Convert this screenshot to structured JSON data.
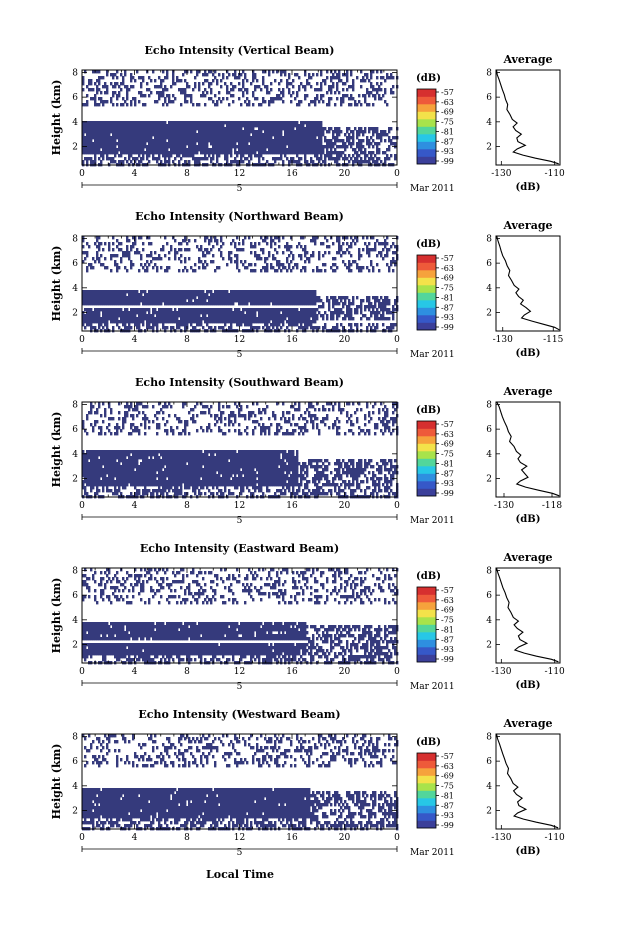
{
  "figure": {
    "xlabel": "Local Time",
    "date_label": "Mar 2011"
  },
  "chart_data": [
    {
      "type": "heatmap",
      "title": "Echo Intensity (Vertical Beam)",
      "xlabel": "",
      "ylabel": "Height (km)",
      "x_ticks": [
        "0",
        "4",
        "8",
        "12",
        "16",
        "20",
        "0"
      ],
      "day_label": "5",
      "y_ticks": [
        "2",
        "4",
        "6",
        "8"
      ],
      "xlim": [
        0,
        24
      ],
      "ylim": [
        0.5,
        8.2
      ],
      "colorbar": {
        "label": "(dB)",
        "ticks": [
          "-57",
          "-63",
          "-69",
          "-75",
          "-81",
          "-87",
          "-93",
          "-99"
        ],
        "colors": [
          "#3b3f9a",
          "#3658c8",
          "#2e8fe0",
          "#27c7e6",
          "#52d69b",
          "#a8e34b",
          "#f3e24a",
          "#f6a23c",
          "#ee5a3a",
          "#d62f2f"
        ]
      },
      "fill_color": "#353a7c",
      "layers": [
        {
          "y_range": [
            3.0,
            4.0
          ],
          "x_range": [
            0,
            18.3
          ],
          "coverage": "solid"
        },
        {
          "y_range": [
            1.5,
            3.0
          ],
          "x_range": [
            0,
            18.3
          ],
          "coverage": "solid"
        },
        {
          "y_range": [
            1.0,
            3.6
          ],
          "x_range": [
            18.3,
            24
          ],
          "coverage": "patchy"
        },
        {
          "y_range": [
            0.5,
            1.4
          ],
          "x_range": [
            0,
            24
          ],
          "coverage": "partial"
        },
        {
          "y_range": [
            5.2,
            8.2
          ],
          "x_range": [
            0,
            24
          ],
          "coverage": "scattered"
        }
      ],
      "profile": {
        "title": "Average",
        "xlabel": "(dB)",
        "x_ticks": [
          "-130",
          "-110"
        ],
        "xlim": [
          -132,
          -108
        ],
        "y_ticks": [
          "2",
          "4",
          "6",
          "8"
        ],
        "ylim": [
          0.5,
          8.2
        ],
        "points": [
          [
            -131.8,
            8.2
          ],
          [
            -131.5,
            7.8
          ],
          [
            -130.8,
            7.4
          ],
          [
            -130.2,
            7.0
          ],
          [
            -129.6,
            6.6
          ],
          [
            -128.9,
            6.2
          ],
          [
            -128.4,
            5.8
          ],
          [
            -127.6,
            5.4
          ],
          [
            -127.9,
            5.0
          ],
          [
            -126.8,
            4.6
          ],
          [
            -125.9,
            4.2
          ],
          [
            -124.1,
            3.9
          ],
          [
            -125.6,
            3.6
          ],
          [
            -124.6,
            3.3
          ],
          [
            -122.5,
            3.0
          ],
          [
            -124.2,
            2.7
          ],
          [
            -123.8,
            2.4
          ],
          [
            -121.0,
            2.1
          ],
          [
            -124.1,
            1.8
          ],
          [
            -125.5,
            1.55
          ],
          [
            -121.9,
            1.3
          ],
          [
            -117.2,
            1.05
          ],
          [
            -111.5,
            0.8
          ],
          [
            -108.5,
            0.6
          ]
        ]
      }
    },
    {
      "type": "heatmap",
      "title": "Echo Intensity (Northward Beam)",
      "xlabel": "",
      "ylabel": "Height (km)",
      "x_ticks": [
        "0",
        "4",
        "8",
        "12",
        "16",
        "20",
        "0"
      ],
      "day_label": "5",
      "y_ticks": [
        "2",
        "4",
        "6",
        "8"
      ],
      "xlim": [
        0,
        24
      ],
      "ylim": [
        0.5,
        8.2
      ],
      "colorbar": {
        "label": "(dB)",
        "ticks": [
          "-57",
          "-63",
          "-69",
          "-75",
          "-81",
          "-87",
          "-93",
          "-99"
        ],
        "colors": [
          "#3b3f9a",
          "#3658c8",
          "#2e8fe0",
          "#27c7e6",
          "#52d69b",
          "#a8e34b",
          "#f3e24a",
          "#f6a23c",
          "#ee5a3a",
          "#d62f2f"
        ]
      },
      "fill_color": "#353a7c",
      "layers": [
        {
          "y_range": [
            2.5,
            3.9
          ],
          "x_range": [
            0,
            17.8
          ],
          "coverage": "solid"
        },
        {
          "y_range": [
            1.2,
            2.3
          ],
          "x_range": [
            0,
            17.8
          ],
          "coverage": "solid"
        },
        {
          "y_range": [
            1.4,
            3.4
          ],
          "x_range": [
            17.8,
            24
          ],
          "coverage": "patchy"
        },
        {
          "y_range": [
            0.5,
            1.2
          ],
          "x_range": [
            0,
            24
          ],
          "coverage": "partial"
        },
        {
          "y_range": [
            5.4,
            8.2
          ],
          "x_range": [
            0,
            24
          ],
          "coverage": "scattered"
        }
      ],
      "profile": {
        "title": "Average",
        "xlabel": "(dB)",
        "x_ticks": [
          "-130",
          "-115"
        ],
        "xlim": [
          -132,
          -113
        ],
        "y_ticks": [
          "2",
          "4",
          "6",
          "8"
        ],
        "ylim": [
          0.5,
          8.2
        ],
        "points": [
          [
            -131.8,
            8.2
          ],
          [
            -131.4,
            7.8
          ],
          [
            -130.9,
            7.4
          ],
          [
            -130.5,
            7.0
          ],
          [
            -130.0,
            6.6
          ],
          [
            -129.2,
            6.2
          ],
          [
            -128.7,
            5.8
          ],
          [
            -127.9,
            5.4
          ],
          [
            -128.3,
            5.0
          ],
          [
            -127.4,
            4.6
          ],
          [
            -126.6,
            4.2
          ],
          [
            -125.2,
            3.9
          ],
          [
            -126.1,
            3.6
          ],
          [
            -125.3,
            3.3
          ],
          [
            -123.9,
            3.0
          ],
          [
            -124.7,
            2.7
          ],
          [
            -123.1,
            2.4
          ],
          [
            -121.8,
            2.1
          ],
          [
            -123.6,
            1.8
          ],
          [
            -124.4,
            1.55
          ],
          [
            -121.3,
            1.3
          ],
          [
            -118.0,
            1.05
          ],
          [
            -114.6,
            0.8
          ],
          [
            -113.2,
            0.6
          ]
        ]
      }
    },
    {
      "type": "heatmap",
      "title": "Echo Intensity (Southward Beam)",
      "xlabel": "",
      "ylabel": "Height (km)",
      "x_ticks": [
        "0",
        "4",
        "8",
        "12",
        "16",
        "20",
        "0"
      ],
      "day_label": "5",
      "y_ticks": [
        "2",
        "4",
        "6",
        "8"
      ],
      "xlim": [
        0,
        24
      ],
      "ylim": [
        0.5,
        8.2
      ],
      "colorbar": {
        "label": "(dB)",
        "ticks": [
          "-57",
          "-63",
          "-69",
          "-75",
          "-81",
          "-87",
          "-93",
          "-99"
        ],
        "colors": [
          "#3b3f9a",
          "#3658c8",
          "#2e8fe0",
          "#27c7e6",
          "#52d69b",
          "#a8e34b",
          "#f3e24a",
          "#f6a23c",
          "#ee5a3a",
          "#d62f2f"
        ]
      },
      "fill_color": "#353a7c",
      "layers": [
        {
          "y_range": [
            1.5,
            4.2
          ],
          "x_range": [
            0,
            16.5
          ],
          "coverage": "solid"
        },
        {
          "y_range": [
            0.5,
            1.5
          ],
          "x_range": [
            0,
            24
          ],
          "coverage": "partial"
        },
        {
          "y_range": [
            1.5,
            3.6
          ],
          "x_range": [
            16.5,
            24
          ],
          "coverage": "patchy"
        },
        {
          "y_range": [
            5.6,
            8.2
          ],
          "x_range": [
            0,
            24
          ],
          "coverage": "scattered"
        }
      ],
      "profile": {
        "title": "Average",
        "xlabel": "(dB)",
        "x_ticks": [
          "-130",
          "-118"
        ],
        "xlim": [
          -132,
          -116
        ],
        "y_ticks": [
          "2",
          "4",
          "6",
          "8"
        ],
        "ylim": [
          0.5,
          8.2
        ],
        "points": [
          [
            -131.8,
            8.2
          ],
          [
            -131.2,
            7.8
          ],
          [
            -130.8,
            7.4
          ],
          [
            -130.4,
            7.0
          ],
          [
            -129.9,
            6.6
          ],
          [
            -129.3,
            6.2
          ],
          [
            -128.9,
            5.8
          ],
          [
            -128.2,
            5.4
          ],
          [
            -128.6,
            5.0
          ],
          [
            -127.5,
            4.6
          ],
          [
            -126.9,
            4.2
          ],
          [
            -125.8,
            3.9
          ],
          [
            -126.5,
            3.6
          ],
          [
            -125.9,
            3.3
          ],
          [
            -124.3,
            3.0
          ],
          [
            -125.6,
            2.7
          ],
          [
            -124.8,
            2.4
          ],
          [
            -124.0,
            2.1
          ],
          [
            -125.9,
            1.8
          ],
          [
            -126.8,
            1.55
          ],
          [
            -124.6,
            1.3
          ],
          [
            -121.4,
            1.05
          ],
          [
            -117.9,
            0.8
          ],
          [
            -116.2,
            0.6
          ]
        ]
      }
    },
    {
      "type": "heatmap",
      "title": "Echo Intensity (Eastward Beam)",
      "xlabel": "",
      "ylabel": "Height (km)",
      "x_ticks": [
        "0",
        "4",
        "8",
        "12",
        "16",
        "20",
        "0"
      ],
      "day_label": "5",
      "y_ticks": [
        "2",
        "4",
        "6",
        "8"
      ],
      "xlim": [
        0,
        24
      ],
      "ylim": [
        0.5,
        8.2
      ],
      "colorbar": {
        "label": "(dB)",
        "ticks": [
          "-57",
          "-63",
          "-69",
          "-75",
          "-81",
          "-87",
          "-93",
          "-99"
        ],
        "colors": [
          "#3b3f9a",
          "#3658c8",
          "#2e8fe0",
          "#27c7e6",
          "#52d69b",
          "#a8e34b",
          "#f3e24a",
          "#f6a23c",
          "#ee5a3a",
          "#d62f2f"
        ]
      },
      "fill_color": "#353a7c",
      "layers": [
        {
          "y_range": [
            2.4,
            3.8
          ],
          "x_range": [
            0,
            17.0
          ],
          "coverage": "solid"
        },
        {
          "y_range": [
            1.2,
            2.2
          ],
          "x_range": [
            0,
            17.0
          ],
          "coverage": "solid"
        },
        {
          "y_range": [
            1.4,
            3.5
          ],
          "x_range": [
            17.0,
            24
          ],
          "coverage": "patchy"
        },
        {
          "y_range": [
            0.5,
            1.3
          ],
          "x_range": [
            0,
            24
          ],
          "coverage": "partial"
        },
        {
          "y_range": [
            5.2,
            8.2
          ],
          "x_range": [
            0,
            24
          ],
          "coverage": "scattered"
        }
      ],
      "profile": {
        "title": "Average",
        "xlabel": "(dB)",
        "x_ticks": [
          "-130",
          "-110"
        ],
        "xlim": [
          -132,
          -108
        ],
        "y_ticks": [
          "2",
          "4",
          "6",
          "8"
        ],
        "ylim": [
          0.5,
          8.2
        ],
        "points": [
          [
            -131.8,
            8.2
          ],
          [
            -131.3,
            7.8
          ],
          [
            -130.6,
            7.4
          ],
          [
            -130.0,
            7.0
          ],
          [
            -129.4,
            6.6
          ],
          [
            -128.6,
            6.2
          ],
          [
            -128.0,
            5.8
          ],
          [
            -127.1,
            5.4
          ],
          [
            -127.5,
            5.0
          ],
          [
            -126.4,
            4.6
          ],
          [
            -125.5,
            4.2
          ],
          [
            -123.6,
            3.9
          ],
          [
            -125.2,
            3.6
          ],
          [
            -124.0,
            3.3
          ],
          [
            -121.9,
            3.0
          ],
          [
            -123.6,
            2.7
          ],
          [
            -123.0,
            2.4
          ],
          [
            -120.4,
            2.1
          ],
          [
            -123.5,
            1.8
          ],
          [
            -124.9,
            1.55
          ],
          [
            -121.4,
            1.3
          ],
          [
            -116.8,
            1.05
          ],
          [
            -111.2,
            0.8
          ],
          [
            -108.6,
            0.6
          ]
        ]
      }
    },
    {
      "type": "heatmap",
      "title": "Echo Intensity (Westward Beam)",
      "xlabel": "Local Time",
      "ylabel": "Height (km)",
      "x_ticks": [
        "0",
        "4",
        "8",
        "12",
        "16",
        "20",
        "0"
      ],
      "day_label": "5",
      "y_ticks": [
        "2",
        "4",
        "6",
        "8"
      ],
      "xlim": [
        0,
        24
      ],
      "ylim": [
        0.5,
        8.2
      ],
      "colorbar": {
        "label": "(dB)",
        "ticks": [
          "-57",
          "-63",
          "-69",
          "-75",
          "-81",
          "-87",
          "-93",
          "-99"
        ],
        "colors": [
          "#3b3f9a",
          "#3658c8",
          "#2e8fe0",
          "#27c7e6",
          "#52d69b",
          "#a8e34b",
          "#f3e24a",
          "#f6a23c",
          "#ee5a3a",
          "#d62f2f"
        ]
      },
      "fill_color": "#353a7c",
      "layers": [
        {
          "y_range": [
            2.7,
            3.9
          ],
          "x_range": [
            0,
            17.3
          ],
          "coverage": "solid"
        },
        {
          "y_range": [
            1.4,
            2.5
          ],
          "x_range": [
            0,
            17.3
          ],
          "coverage": "solid"
        },
        {
          "y_range": [
            1.3,
            3.5
          ],
          "x_range": [
            17.3,
            24
          ],
          "coverage": "patchy"
        },
        {
          "y_range": [
            0.5,
            1.3
          ],
          "x_range": [
            0,
            24
          ],
          "coverage": "partial"
        },
        {
          "y_range": [
            5.6,
            8.2
          ],
          "x_range": [
            0,
            24
          ],
          "coverage": "scattered"
        }
      ],
      "profile": {
        "title": "Average",
        "xlabel": "(dB)",
        "x_ticks": [
          "-130",
          "-110"
        ],
        "xlim": [
          -132,
          -108
        ],
        "y_ticks": [
          "2",
          "4",
          "6",
          "8"
        ],
        "ylim": [
          0.5,
          8.2
        ],
        "points": [
          [
            -131.8,
            8.2
          ],
          [
            -131.4,
            7.8
          ],
          [
            -130.7,
            7.4
          ],
          [
            -130.1,
            7.0
          ],
          [
            -129.5,
            6.6
          ],
          [
            -128.8,
            6.2
          ],
          [
            -128.2,
            5.8
          ],
          [
            -127.3,
            5.4
          ],
          [
            -127.7,
            5.0
          ],
          [
            -126.5,
            4.6
          ],
          [
            -125.6,
            4.2
          ],
          [
            -123.8,
            3.9
          ],
          [
            -125.4,
            3.6
          ],
          [
            -124.3,
            3.3
          ],
          [
            -122.2,
            3.0
          ],
          [
            -123.9,
            2.7
          ],
          [
            -123.4,
            2.4
          ],
          [
            -120.8,
            2.1
          ],
          [
            -123.9,
            1.8
          ],
          [
            -125.2,
            1.55
          ],
          [
            -121.7,
            1.3
          ],
          [
            -116.9,
            1.05
          ],
          [
            -111.3,
            0.8
          ],
          [
            -108.7,
            0.6
          ]
        ]
      }
    }
  ]
}
